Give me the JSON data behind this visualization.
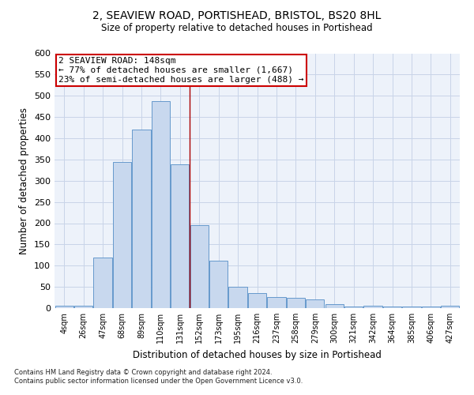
{
  "title": "2, SEAVIEW ROAD, PORTISHEAD, BRISTOL, BS20 8HL",
  "subtitle": "Size of property relative to detached houses in Portishead",
  "xlabel": "Distribution of detached houses by size in Portishead",
  "ylabel": "Number of detached properties",
  "bar_labels": [
    "4sqm",
    "26sqm",
    "47sqm",
    "68sqm",
    "89sqm",
    "110sqm",
    "131sqm",
    "152sqm",
    "173sqm",
    "195sqm",
    "216sqm",
    "237sqm",
    "258sqm",
    "279sqm",
    "300sqm",
    "321sqm",
    "342sqm",
    "364sqm",
    "385sqm",
    "406sqm",
    "427sqm"
  ],
  "bar_values": [
    5,
    5,
    120,
    345,
    420,
    488,
    338,
    195,
    112,
    50,
    35,
    26,
    25,
    20,
    10,
    3,
    5,
    4,
    4,
    3,
    5
  ],
  "bar_color": "#c8d8ee",
  "bar_edge_color": "#6699cc",
  "annotation_title": "2 SEAVIEW ROAD: 148sqm",
  "annotation_line1": "← 77% of detached houses are smaller (1,667)",
  "annotation_line2": "23% of semi-detached houses are larger (488) →",
  "annotation_box_color": "#ffffff",
  "annotation_box_edge": "#cc0000",
  "vline_color": "#aa0000",
  "footer1": "Contains HM Land Registry data © Crown copyright and database right 2024.",
  "footer2": "Contains public sector information licensed under the Open Government Licence v3.0.",
  "ylim": [
    0,
    600
  ],
  "yticks": [
    0,
    50,
    100,
    150,
    200,
    250,
    300,
    350,
    400,
    450,
    500,
    550,
    600
  ],
  "grid_color": "#c8d4e8",
  "bg_color": "#edf2fa"
}
